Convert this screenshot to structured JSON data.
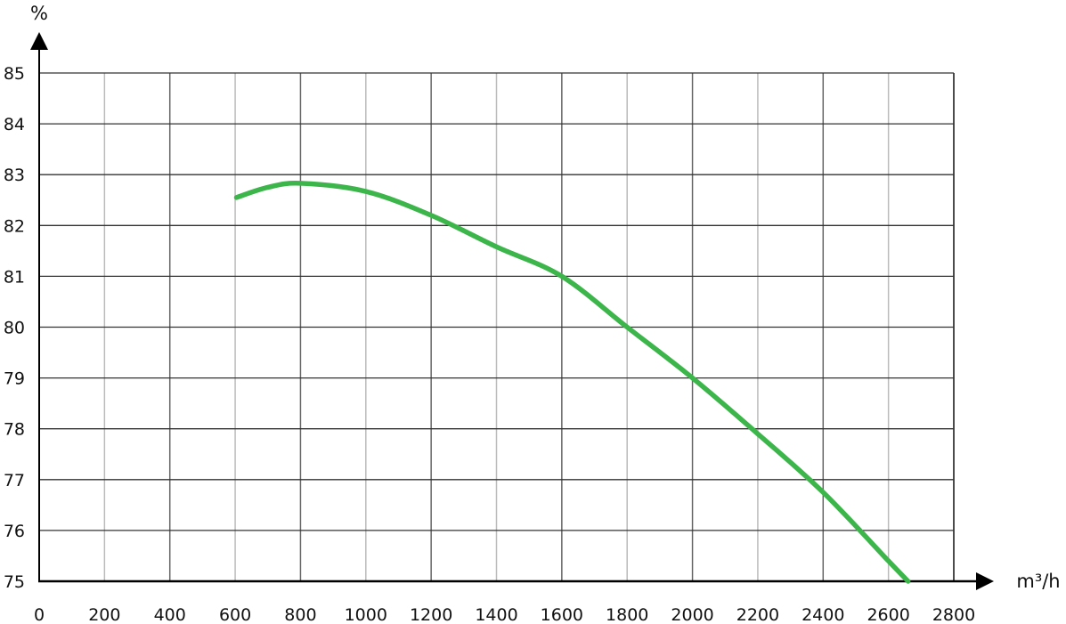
{
  "chart_data": {
    "type": "line",
    "title": "",
    "xlabel": "m³/h",
    "ylabel": "%",
    "xlim": [
      0,
      2800
    ],
    "ylim": [
      75,
      85
    ],
    "x_ticks": [
      0,
      200,
      400,
      600,
      800,
      1000,
      1200,
      1400,
      1600,
      1800,
      2000,
      2200,
      2400,
      2600,
      2800
    ],
    "y_ticks": [
      75,
      76,
      77,
      78,
      79,
      80,
      81,
      82,
      83,
      84,
      85
    ],
    "grid": true,
    "series": [
      {
        "color": "#3cb54a",
        "x": [
          604,
          700,
          800,
          1000,
          1200,
          1400,
          1600,
          1800,
          2000,
          2200,
          2400,
          2600,
          2660
        ],
        "y": [
          82.55,
          82.75,
          82.83,
          82.67,
          82.2,
          81.58,
          81.0,
          80.0,
          79.0,
          77.9,
          76.75,
          75.4,
          75.0
        ]
      }
    ]
  }
}
